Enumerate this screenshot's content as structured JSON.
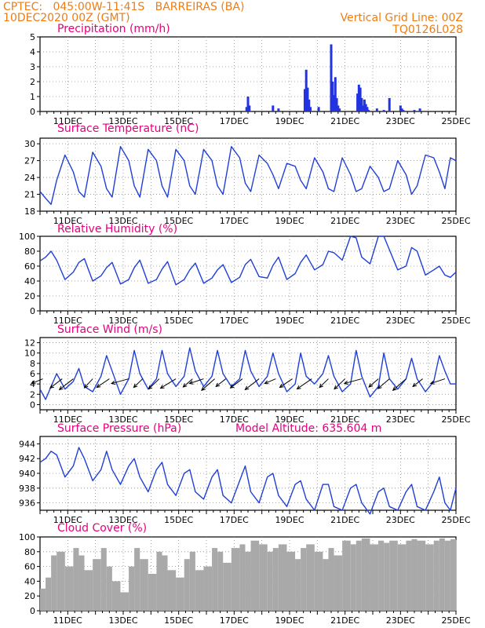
{
  "header": {
    "line1": "CPTEC:   045:00W-11:41S   BARREIRAS (BA)",
    "line2": "10DEC2020 00Z (GMT)",
    "grid_note": "Vertical Grid Line: 00Z",
    "model_code": "TQ0126L028"
  },
  "colors": {
    "header": "#f07c12",
    "title": "#e6007e",
    "line": "#1f3fd8",
    "bar": "#2233e0",
    "cloud": "#a9a9a9",
    "arrow": "#000000"
  },
  "chart_data": [
    {
      "type": "bar",
      "title": "Precipitation (mm/h)",
      "yticks": [
        0,
        1,
        2,
        3,
        4,
        5
      ],
      "ylim": [
        0,
        5
      ],
      "xticks": [
        "11DEC",
        "13DEC",
        "15DEC",
        "17DEC",
        "19DEC",
        "21DEC",
        "23DEC",
        "25DEC"
      ],
      "x_unit": "day offset from 10DEC2020 00Z",
      "x": [
        7.45,
        7.5,
        7.55,
        8.4,
        8.6,
        9.55,
        9.6,
        9.65,
        9.7,
        9.75,
        10.05,
        10.5,
        10.55,
        10.6,
        10.65,
        10.7,
        10.75,
        10.8,
        11.45,
        11.5,
        11.55,
        11.6,
        11.65,
        11.7,
        11.75,
        11.8,
        11.85,
        12.15,
        12.4,
        12.6,
        13.0,
        13.05,
        13.1,
        13.5,
        13.7
      ],
      "values": [
        0.3,
        1.0,
        0.4,
        0.4,
        0.2,
        1.5,
        2.8,
        1.6,
        0.8,
        0.3,
        0.3,
        4.5,
        2.0,
        1.1,
        2.3,
        0.9,
        0.4,
        0.2,
        1.2,
        1.8,
        1.6,
        0.9,
        0.4,
        0.8,
        0.5,
        0.3,
        0.1,
        0.2,
        0.1,
        0.9,
        0.4,
        0.2,
        0.1,
        0.1,
        0.2
      ]
    },
    {
      "type": "line",
      "title": "Surface Temperature (nC)",
      "yticks": [
        18,
        21,
        24,
        27,
        30
      ],
      "ylim": [
        18,
        31
      ],
      "xticks": [
        "11DEC",
        "13DEC",
        "15DEC",
        "17DEC",
        "19DEC",
        "21DEC",
        "23DEC",
        "25DEC"
      ],
      "series": [
        {
          "x": [
            0,
            0.2,
            0.4,
            0.6,
            0.9,
            1.2,
            1.4,
            1.6,
            1.9,
            2.2,
            2.4,
            2.6,
            2.9,
            3.2,
            3.4,
            3.6,
            3.9,
            4.2,
            4.4,
            4.6,
            4.9,
            5.2,
            5.4,
            5.6,
            5.9,
            6.2,
            6.4,
            6.6,
            6.9,
            7.2,
            7.4,
            7.6,
            7.9,
            8.2,
            8.4,
            8.6,
            8.9,
            9.2,
            9.4,
            9.6,
            9.9,
            10.2,
            10.4,
            10.6,
            10.9,
            11.2,
            11.4,
            11.6,
            11.9,
            12.2,
            12.4,
            12.6,
            12.9,
            13.2,
            13.4,
            13.6,
            13.9,
            14.2,
            14.4,
            14.6,
            14.8,
            15.0
          ],
          "values": [
            21.5,
            20.3,
            19.2,
            23.5,
            28.0,
            25.0,
            21.5,
            20.5,
            28.5,
            26.0,
            22.0,
            20.5,
            29.5,
            27.0,
            22.5,
            20.5,
            29.0,
            27.0,
            22.5,
            20.5,
            29.0,
            27.0,
            22.5,
            21.0,
            29.0,
            27.0,
            22.5,
            21.0,
            29.5,
            27.5,
            23.0,
            21.5,
            28.0,
            26.5,
            24.5,
            22.0,
            26.5,
            26.0,
            23.5,
            22.0,
            27.5,
            25.0,
            22.0,
            21.5,
            27.5,
            24.5,
            21.5,
            22.0,
            26.0,
            24.0,
            21.5,
            22.0,
            27.0,
            24.5,
            21.0,
            22.5,
            28.0,
            27.5,
            25.0,
            22.0,
            27.5,
            27.0
          ]
        }
      ]
    },
    {
      "type": "line",
      "title": "Relative Humidity (%)",
      "yticks": [
        0,
        20,
        40,
        60,
        80,
        100
      ],
      "ylim": [
        0,
        100
      ],
      "xticks": [
        "11DEC",
        "13DEC",
        "15DEC",
        "17DEC",
        "19DEC",
        "21DEC",
        "23DEC",
        "25DEC"
      ],
      "series": [
        {
          "x": [
            0,
            0.2,
            0.4,
            0.6,
            0.9,
            1.2,
            1.4,
            1.6,
            1.9,
            2.2,
            2.4,
            2.6,
            2.9,
            3.2,
            3.4,
            3.6,
            3.9,
            4.2,
            4.4,
            4.6,
            4.9,
            5.2,
            5.4,
            5.6,
            5.9,
            6.2,
            6.4,
            6.6,
            6.9,
            7.2,
            7.4,
            7.6,
            7.9,
            8.2,
            8.4,
            8.6,
            8.9,
            9.2,
            9.4,
            9.6,
            9.9,
            10.2,
            10.4,
            10.6,
            10.9,
            11.2,
            11.4,
            11.6,
            11.9,
            12.2,
            12.4,
            12.6,
            12.9,
            13.2,
            13.4,
            13.6,
            13.9,
            14.2,
            14.4,
            14.6,
            14.8,
            15.0
          ],
          "values": [
            67,
            72,
            80,
            68,
            42,
            52,
            65,
            70,
            40,
            47,
            58,
            65,
            36,
            42,
            58,
            68,
            37,
            42,
            56,
            66,
            35,
            42,
            55,
            64,
            37,
            44,
            55,
            62,
            38,
            45,
            62,
            69,
            46,
            44,
            61,
            72,
            42,
            50,
            65,
            75,
            55,
            62,
            80,
            78,
            68,
            100,
            98,
            72,
            63,
            100,
            100,
            82,
            55,
            60,
            85,
            80,
            48,
            55,
            60,
            48,
            45,
            52
          ]
        }
      ]
    },
    {
      "type": "line",
      "title": "Surface Wind (m/s)",
      "yticks": [
        0,
        2,
        4,
        6,
        8,
        10,
        12
      ],
      "ylim": [
        -1,
        13
      ],
      "xticks": [
        "11DEC",
        "13DEC",
        "15DEC",
        "17DEC",
        "19DEC",
        "21DEC",
        "23DEC",
        "25DEC"
      ],
      "series": [
        {
          "x": [
            0,
            0.2,
            0.4,
            0.6,
            0.9,
            1.2,
            1.4,
            1.6,
            1.9,
            2.2,
            2.4,
            2.6,
            2.9,
            3.2,
            3.4,
            3.6,
            3.9,
            4.2,
            4.4,
            4.6,
            4.9,
            5.2,
            5.4,
            5.6,
            5.9,
            6.2,
            6.4,
            6.6,
            6.9,
            7.2,
            7.4,
            7.6,
            7.9,
            8.2,
            8.4,
            8.6,
            8.9,
            9.2,
            9.4,
            9.6,
            9.9,
            10.2,
            10.4,
            10.6,
            10.9,
            11.2,
            11.4,
            11.6,
            11.9,
            12.2,
            12.4,
            12.6,
            12.9,
            13.2,
            13.4,
            13.6,
            13.9,
            14.2,
            14.4,
            14.6,
            14.8,
            15.0
          ],
          "values": [
            3.0,
            1.0,
            3.5,
            6.0,
            3.0,
            4.5,
            7.0,
            3.5,
            2.5,
            5.5,
            9.5,
            6.5,
            2.0,
            5.0,
            10.5,
            6.0,
            3.0,
            5.0,
            10.5,
            6.0,
            3.5,
            5.5,
            11.0,
            6.5,
            3.5,
            5.5,
            10.5,
            6.0,
            3.5,
            5.0,
            10.5,
            6.5,
            3.5,
            5.5,
            10.0,
            6.0,
            2.5,
            4.0,
            10.0,
            5.5,
            4.0,
            6.0,
            9.5,
            5.5,
            2.5,
            4.0,
            10.5,
            5.5,
            1.5,
            3.5,
            10.0,
            5.0,
            3.0,
            5.0,
            9.0,
            5.0,
            2.5,
            4.5,
            9.5,
            6.5,
            4.0,
            4.0
          ]
        }
      ],
      "wind_vectors_x": [
        0.1,
        0.8,
        1.2,
        1.9,
        2.5,
        3.2,
        3.7,
        4.3,
        4.9,
        5.5,
        5.9,
        6.3,
        6.7,
        7.3,
        7.9,
        8.5,
        9.1,
        9.8,
        10.4,
        11.0,
        11.6,
        12.2,
        12.6,
        13.2,
        13.8,
        14.6
      ]
    },
    {
      "type": "line",
      "title": "Surface Pressure (hPa)",
      "subtitle": "Model Altitude: 635.604  m",
      "yticks": [
        936,
        938,
        940,
        942,
        944
      ],
      "ylim": [
        935,
        945
      ],
      "xticks": [
        "11DEC",
        "13DEC",
        "15DEC",
        "17DEC",
        "19DEC",
        "21DEC",
        "23DEC",
        "25DEC"
      ],
      "series": [
        {
          "x": [
            0,
            0.2,
            0.4,
            0.6,
            0.9,
            1.2,
            1.4,
            1.6,
            1.9,
            2.2,
            2.4,
            2.6,
            2.9,
            3.2,
            3.4,
            3.6,
            3.9,
            4.2,
            4.4,
            4.6,
            4.9,
            5.2,
            5.4,
            5.6,
            5.9,
            6.2,
            6.4,
            6.6,
            6.9,
            7.2,
            7.4,
            7.6,
            7.9,
            8.2,
            8.4,
            8.6,
            8.9,
            9.2,
            9.4,
            9.6,
            9.9,
            10.2,
            10.4,
            10.6,
            10.9,
            11.2,
            11.4,
            11.6,
            11.9,
            12.2,
            12.4,
            12.6,
            12.9,
            13.2,
            13.4,
            13.6,
            13.9,
            14.2,
            14.4,
            14.6,
            14.8,
            15.0
          ],
          "values": [
            941.5,
            942.0,
            943.0,
            942.5,
            939.5,
            941.0,
            943.5,
            942.0,
            939.0,
            940.5,
            943.0,
            940.5,
            938.5,
            941.0,
            942.0,
            939.5,
            937.5,
            940.5,
            941.5,
            938.5,
            937.0,
            940.0,
            940.5,
            937.5,
            936.5,
            939.5,
            940.5,
            937.0,
            936.0,
            939.0,
            941.0,
            937.5,
            936.0,
            939.5,
            940.0,
            937.0,
            935.5,
            938.5,
            939.0,
            936.5,
            935.0,
            938.5,
            938.5,
            935.5,
            935.0,
            938.0,
            938.5,
            936.0,
            934.5,
            937.5,
            938.0,
            935.5,
            935.0,
            937.5,
            938.5,
            935.5,
            935.0,
            937.5,
            939.5,
            936.0,
            935.0,
            938.0
          ]
        }
      ]
    },
    {
      "type": "area",
      "title": "Cloud Cover (%)",
      "yticks": [
        0,
        20,
        40,
        60,
        80,
        100
      ],
      "ylim": [
        0,
        100
      ],
      "xticks": [
        "11DEC",
        "13DEC",
        "15DEC",
        "17DEC",
        "19DEC",
        "21DEC",
        "23DEC",
        "25DEC"
      ],
      "series": [
        {
          "x": [
            0,
            0.2,
            0.4,
            0.6,
            0.9,
            1.2,
            1.4,
            1.6,
            1.9,
            2.2,
            2.4,
            2.6,
            2.9,
            3.2,
            3.4,
            3.6,
            3.9,
            4.2,
            4.4,
            4.6,
            4.9,
            5.2,
            5.4,
            5.6,
            5.9,
            6.2,
            6.4,
            6.6,
            6.9,
            7.2,
            7.4,
            7.6,
            7.9,
            8.2,
            8.4,
            8.6,
            8.9,
            9.2,
            9.4,
            9.6,
            9.9,
            10.2,
            10.4,
            10.6,
            10.9,
            11.2,
            11.4,
            11.6,
            11.9,
            12.2,
            12.4,
            12.6,
            12.9,
            13.2,
            13.4,
            13.6,
            13.9,
            14.2,
            14.4,
            14.6,
            14.8,
            15.0
          ],
          "values": [
            30,
            45,
            75,
            80,
            60,
            85,
            75,
            55,
            70,
            85,
            60,
            40,
            25,
            60,
            85,
            70,
            50,
            80,
            75,
            55,
            45,
            70,
            80,
            55,
            60,
            85,
            80,
            65,
            85,
            90,
            80,
            95,
            90,
            80,
            85,
            90,
            80,
            70,
            85,
            90,
            80,
            70,
            85,
            75,
            95,
            90,
            95,
            98,
            90,
            95,
            92,
            95,
            90,
            95,
            97,
            95,
            90,
            95,
            98,
            95,
            97,
            96
          ]
        }
      ]
    }
  ]
}
